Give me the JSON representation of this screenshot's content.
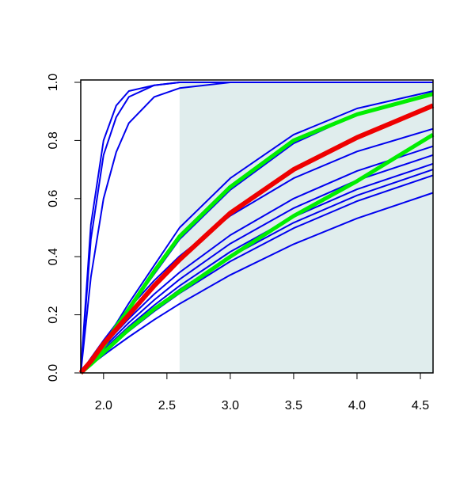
{
  "chart_data": {
    "type": "line",
    "x": [
      1.82,
      1.9,
      2.0,
      2.1,
      2.2,
      2.4,
      2.6,
      3.0,
      3.5,
      4.0,
      4.6
    ],
    "series": [
      {
        "color": "#0000ee",
        "width": 2,
        "values": [
          0,
          0.51,
          0.8,
          0.92,
          0.97,
          0.99,
          1.0,
          1.0,
          1.0,
          1.0,
          1.0
        ]
      },
      {
        "color": "#0000ee",
        "width": 2,
        "values": [
          0,
          0.46,
          0.75,
          0.88,
          0.95,
          0.99,
          1.0,
          1.0,
          1.0,
          1.0,
          1.0
        ]
      },
      {
        "color": "#0000ee",
        "width": 2,
        "values": [
          0,
          0.33,
          0.6,
          0.76,
          0.86,
          0.95,
          0.98,
          1.0,
          1.0,
          1.0,
          1.0
        ]
      },
      {
        "color": "#0000ee",
        "width": 2,
        "values": [
          0,
          0.04,
          0.1,
          0.17,
          0.24,
          0.37,
          0.5,
          0.67,
          0.82,
          0.91,
          0.97
        ]
      },
      {
        "color": "#0000ee",
        "width": 2,
        "values": [
          0,
          0.035,
          0.09,
          0.15,
          0.22,
          0.34,
          0.46,
          0.63,
          0.79,
          0.89,
          0.965
        ]
      },
      {
        "color": "#0000ee",
        "width": 2,
        "values": [
          0,
          0.051,
          0.112,
          0.169,
          0.222,
          0.318,
          0.402,
          0.541,
          0.67,
          0.762,
          0.84
        ]
      },
      {
        "color": "#0000ee",
        "width": 2,
        "values": [
          0,
          0.043,
          0.093,
          0.141,
          0.187,
          0.271,
          0.346,
          0.474,
          0.6,
          0.695,
          0.78
        ]
      },
      {
        "color": "#0000ee",
        "width": 2,
        "values": [
          0,
          0.039,
          0.086,
          0.13,
          0.173,
          0.251,
          0.322,
          0.445,
          0.567,
          0.663,
          0.75
        ]
      },
      {
        "color": "#0000ee",
        "width": 2,
        "values": [
          0,
          0.036,
          0.079,
          0.12,
          0.16,
          0.233,
          0.3,
          0.417,
          0.537,
          0.632,
          0.72
        ]
      },
      {
        "color": "#0000ee",
        "width": 2,
        "values": [
          0,
          0.034,
          0.075,
          0.114,
          0.152,
          0.222,
          0.287,
          0.4,
          0.517,
          0.611,
          0.7
        ]
      },
      {
        "color": "#0000ee",
        "width": 2,
        "values": [
          0,
          0.032,
          0.071,
          0.108,
          0.144,
          0.212,
          0.274,
          0.384,
          0.498,
          0.591,
          0.68
        ]
      },
      {
        "color": "#0000ee",
        "width": 2,
        "values": [
          0,
          0.028,
          0.061,
          0.093,
          0.124,
          0.183,
          0.238,
          0.337,
          0.443,
          0.532,
          0.62
        ]
      },
      {
        "color": "#00ee00",
        "width": 5,
        "values": [
          0,
          0.035,
          0.09,
          0.16,
          0.22,
          0.35,
          0.47,
          0.64,
          0.8,
          0.89,
          0.96
        ]
      },
      {
        "color": "#00ee00",
        "width": 5,
        "values": [
          0,
          0.03,
          0.07,
          0.11,
          0.15,
          0.22,
          0.28,
          0.4,
          0.54,
          0.66,
          0.82
        ]
      },
      {
        "color": "#ee0000",
        "width": 6,
        "values": [
          0,
          0.04,
          0.1,
          0.15,
          0.2,
          0.3,
          0.39,
          0.55,
          0.7,
          0.81,
          0.92
        ]
      }
    ],
    "shade": {
      "x": [
        2.6,
        4.6
      ],
      "color": "#e0eded"
    },
    "xlim": [
      1.82,
      4.6
    ],
    "ylim": [
      0,
      1
    ],
    "xticks": [
      {
        "value": 2,
        "label": "2.0"
      },
      2.5,
      {
        "value": 3,
        "label": "3.0"
      },
      3.5,
      {
        "value": 4,
        "label": "4.0"
      },
      4.5
    ],
    "yticks": [
      {
        "value": 0,
        "label": "0.0"
      },
      0.2,
      0.4,
      0.6,
      0.8,
      {
        "value": 1,
        "label": "1.0"
      }
    ]
  }
}
